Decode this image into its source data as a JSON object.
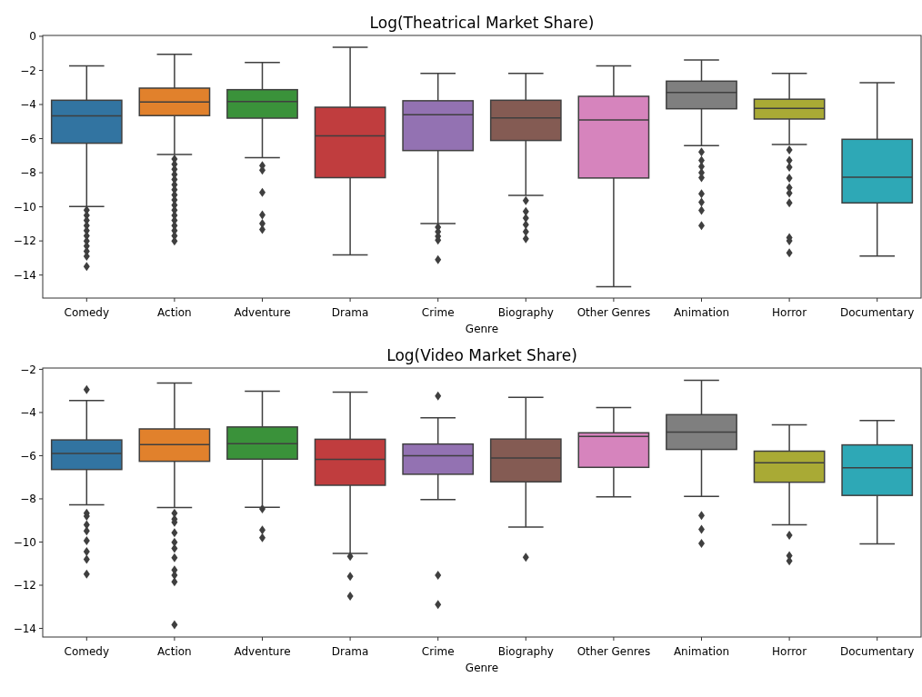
{
  "chart_data": [
    {
      "type": "box",
      "title": "Log(Theatrical Market Share)",
      "xlabel": "Genre",
      "categories": [
        "Comedy",
        "Action",
        "Adventure",
        "Drama",
        "Crime",
        "Biography",
        "Other Genres",
        "Animation",
        "Horror",
        "Documentary"
      ],
      "colors": [
        "#3274a1",
        "#e1812c",
        "#3a923a",
        "#c03d3e",
        "#9372b2",
        "#845b53",
        "#d684bd",
        "#7f7f7f",
        "#a9aa35",
        "#2ea8b6"
      ],
      "ylim": [
        -15.35,
        0.05
      ],
      "yticks": [
        0,
        -2,
        -4,
        -6,
        -8,
        -10,
        -12,
        -14
      ],
      "boxes": [
        {
          "low": -9.98,
          "q1": -6.27,
          "median": -4.67,
          "q3": -3.75,
          "high": -1.74,
          "outliers": [
            -10.2,
            -10.5,
            -10.8,
            -11.1,
            -11.4,
            -11.7,
            -12.0,
            -12.3,
            -12.6,
            -12.9,
            -13.5
          ]
        },
        {
          "low": -6.93,
          "q1": -4.65,
          "median": -3.85,
          "q3": -3.04,
          "high": -1.05,
          "outliers": [
            -7.2,
            -7.5,
            -7.8,
            -8.1,
            -8.4,
            -8.7,
            -9.0,
            -9.3,
            -9.6,
            -9.9,
            -10.2,
            -10.5,
            -10.8,
            -11.1,
            -11.4,
            -11.7,
            -12.0
          ]
        },
        {
          "low": -7.12,
          "q1": -4.8,
          "median": -3.82,
          "q3": -3.13,
          "high": -1.53,
          "outliers": [
            -7.58,
            -7.85,
            -9.15,
            -10.48,
            -10.98,
            -11.33
          ]
        },
        {
          "low": -12.82,
          "q1": -8.29,
          "median": -5.84,
          "q3": -4.16,
          "high": -0.64
        },
        {
          "low": -10.98,
          "q1": -6.7,
          "median": -4.6,
          "q3": -3.78,
          "high": -2.17,
          "outliers": [
            -11.2,
            -11.46,
            -11.72,
            -11.95,
            -13.1
          ]
        },
        {
          "low": -9.33,
          "q1": -6.11,
          "median": -4.78,
          "q3": -3.75,
          "high": -2.18,
          "outliers": [
            -9.64,
            -10.27,
            -10.66,
            -11.05,
            -11.46,
            -11.87
          ]
        },
        {
          "low": -14.69,
          "q1": -8.31,
          "median": -4.9,
          "q3": -3.52,
          "high": -1.74
        },
        {
          "low": -6.41,
          "q1": -4.25,
          "median": -3.29,
          "q3": -2.63,
          "high": -1.39,
          "outliers": [
            -6.78,
            -7.28,
            -7.64,
            -7.99,
            -8.29,
            -9.24,
            -9.73,
            -10.21,
            -11.1
          ]
        },
        {
          "low": -6.34,
          "q1": -4.85,
          "median": -4.23,
          "q3": -3.69,
          "high": -2.18,
          "outliers": [
            -6.66,
            -7.28,
            -7.67,
            -8.31,
            -8.88,
            -9.2,
            -9.77,
            -11.81,
            -11.99,
            -12.7
          ]
        },
        {
          "low": -12.88,
          "q1": -9.77,
          "median": -8.26,
          "q3": -6.04,
          "high": -2.72
        }
      ]
    },
    {
      "type": "box",
      "title": "Log(Video Market Share)",
      "xlabel": "Genre",
      "categories": [
        "Comedy",
        "Action",
        "Adventure",
        "Drama",
        "Crime",
        "Biography",
        "Other Genres",
        "Animation",
        "Horror",
        "Documentary"
      ],
      "colors": [
        "#3274a1",
        "#e1812c",
        "#3a923a",
        "#c03d3e",
        "#9372b2",
        "#845b53",
        "#d684bd",
        "#7f7f7f",
        "#a9aa35",
        "#2ea8b6"
      ],
      "ylim": [
        -14.4,
        -1.94
      ],
      "yticks": [
        -2,
        -4,
        -6,
        -8,
        -10,
        -12,
        -14
      ],
      "boxes": [
        {
          "low": -8.27,
          "q1": -6.64,
          "median": -5.9,
          "q3": -5.27,
          "high": -3.44,
          "outliers": [
            -2.94,
            -8.66,
            -8.8,
            -9.2,
            -9.49,
            -9.94,
            -10.44,
            -10.8,
            -11.49
          ]
        },
        {
          "low": -8.4,
          "q1": -6.26,
          "median": -5.49,
          "q3": -4.76,
          "high": -2.63,
          "outliers": [
            -8.66,
            -8.94,
            -9.09,
            -9.57,
            -10.01,
            -10.3,
            -10.73,
            -11.3,
            -11.54,
            -11.84,
            -13.83
          ]
        },
        {
          "low": -8.39,
          "q1": -6.16,
          "median": -5.44,
          "q3": -4.67,
          "high": -3.01,
          "outliers": [
            -8.46,
            -9.44,
            -9.8
          ]
        },
        {
          "low": -10.53,
          "q1": -7.37,
          "median": -6.17,
          "q3": -5.24,
          "high": -3.06,
          "outliers": [
            -10.66,
            -11.59,
            -12.51
          ]
        },
        {
          "low": -8.03,
          "q1": -6.86,
          "median": -6.0,
          "q3": -5.46,
          "high": -4.24,
          "outliers": [
            -3.23,
            -11.54,
            -12.89
          ]
        },
        {
          "low": -9.31,
          "q1": -7.21,
          "median": -6.11,
          "q3": -5.23,
          "high": -3.3,
          "outliers": [
            -10.71
          ]
        },
        {
          "low": -7.91,
          "q1": -6.54,
          "median": -5.11,
          "q3": -4.94,
          "high": -3.77
        },
        {
          "low": -7.89,
          "q1": -5.71,
          "median": -4.91,
          "q3": -4.1,
          "high": -2.51,
          "outliers": [
            -8.77,
            -9.41,
            -10.06
          ]
        },
        {
          "low": -9.2,
          "q1": -7.23,
          "median": -6.33,
          "q3": -5.79,
          "high": -4.57,
          "outliers": [
            -9.69,
            -10.63,
            -10.87
          ]
        },
        {
          "low": -10.09,
          "q1": -7.84,
          "median": -6.56,
          "q3": -5.5,
          "high": -4.37
        }
      ]
    }
  ]
}
